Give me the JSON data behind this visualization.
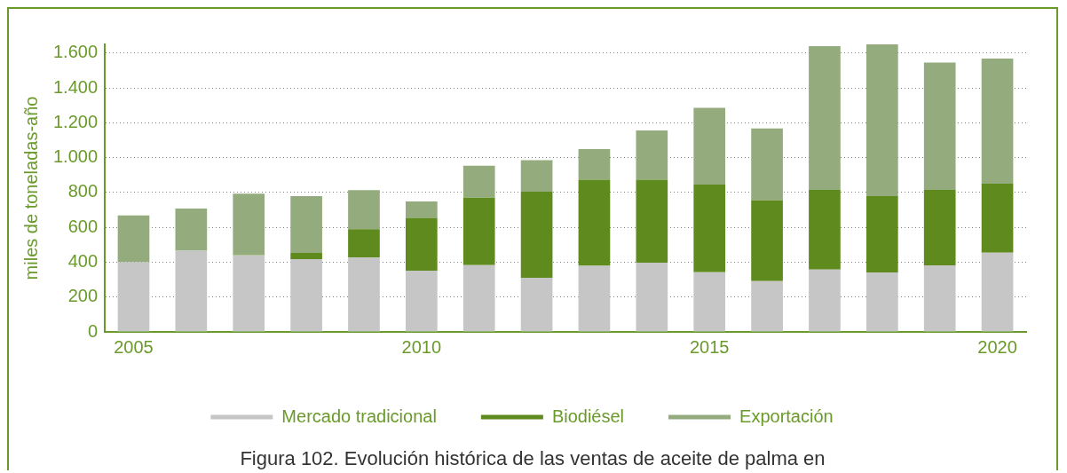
{
  "chart_data": {
    "type": "bar",
    "stacked": true,
    "ylabel": "miles de toneladas-año",
    "categories": [
      "2005",
      null,
      null,
      null,
      null,
      "2010",
      null,
      null,
      null,
      null,
      "2015",
      null,
      null,
      null,
      null,
      "2020"
    ],
    "series": [
      {
        "name": "Mercado tradicional",
        "color": "#c6c6c6",
        "values": [
          400,
          466,
          440,
          417,
          427,
          352,
          383,
          311,
          380,
          397,
          343,
          291,
          358,
          341,
          382,
          455
        ]
      },
      {
        "name": "Biodiésel",
        "color": "#5f8a1e",
        "values": [
          0,
          0,
          5,
          36,
          162,
          302,
          387,
          494,
          494,
          477,
          503,
          464,
          457,
          438,
          433,
          395
        ]
      },
      {
        "name": "Exportación",
        "color": "#94ab7e",
        "values": [
          268,
          242,
          348,
          326,
          225,
          95,
          184,
          180,
          175,
          282,
          440,
          412,
          825,
          876,
          730,
          719
        ]
      }
    ],
    "ylim": [
      0,
      1650
    ],
    "yticks": [
      0,
      200,
      400,
      600,
      800,
      {
        "value": 1000,
        "label": "1.000"
      },
      {
        "value": 1200,
        "label": "1.200"
      },
      {
        "value": 1400,
        "label": "1.400"
      },
      {
        "value": 1600,
        "label": "1.600"
      }
    ],
    "grid": "y",
    "legend": "bottom",
    "annotations": [
      "Figura 102. Evolución histórica de las ventas de aceite de palma en"
    ]
  }
}
